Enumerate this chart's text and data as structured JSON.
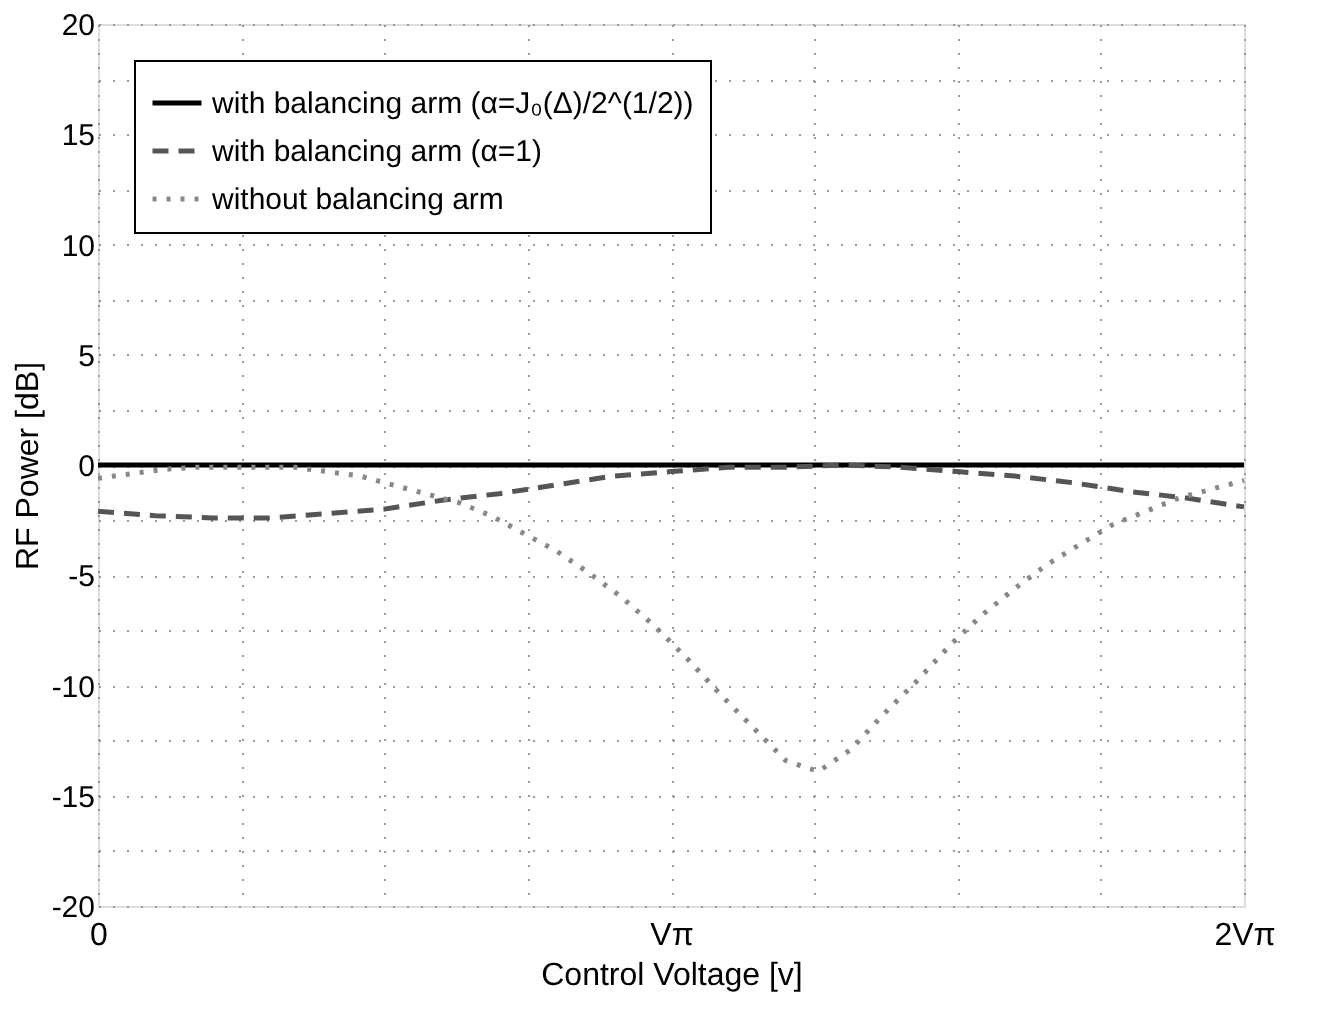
{
  "chart_data": {
    "type": "line",
    "xlabel": "Control Voltage [v]",
    "ylabel": "RF Power [dB]",
    "xlim": [
      0,
      2
    ],
    "ylim": [
      -20,
      20
    ],
    "xticks": [
      {
        "value": 0,
        "label": "0"
      },
      {
        "value": 0.25,
        "label": null
      },
      {
        "value": 0.5,
        "label": null
      },
      {
        "value": 0.75,
        "label": null
      },
      {
        "value": 1,
        "label": "Vπ"
      },
      {
        "value": 1.25,
        "label": null
      },
      {
        "value": 1.5,
        "label": null
      },
      {
        "value": 1.75,
        "label": null
      },
      {
        "value": 2,
        "label": "2Vπ"
      }
    ],
    "yticks": [
      -20,
      {
        "value": -17.5,
        "label": null
      },
      -15,
      {
        "value": -12.5,
        "label": null
      },
      -10,
      {
        "value": -7.5,
        "label": null
      },
      -5,
      {
        "value": -2.5,
        "label": null
      },
      0,
      {
        "value": 2.5,
        "label": null
      },
      5,
      {
        "value": 7.5,
        "label": null
      },
      10,
      {
        "value": 12.5,
        "label": null
      },
      15,
      {
        "value": 17.5,
        "label": null
      },
      20
    ],
    "grid": true,
    "legend": "top left",
    "series": [
      {
        "name": "with balancing arm (α=J₀(Δ)/2^(1/2))",
        "color": "#000000",
        "line_style": "solid",
        "x": [
          0,
          2
        ],
        "values": [
          0,
          0
        ]
      },
      {
        "name": "with balancing arm (α=1)",
        "color": "#555555",
        "line_style": "dashed",
        "x": [
          0,
          0.1,
          0.2,
          0.3,
          0.4,
          0.5,
          0.6,
          0.7,
          0.8,
          0.9,
          1.0,
          1.1,
          1.2,
          1.3,
          1.4,
          1.5,
          1.6,
          1.7,
          1.8,
          1.9,
          2.0
        ],
        "values": [
          -2.1,
          -2.3,
          -2.4,
          -2.4,
          -2.2,
          -2.0,
          -1.6,
          -1.3,
          -0.9,
          -0.5,
          -0.3,
          -0.1,
          -0.1,
          0.0,
          -0.1,
          -0.3,
          -0.5,
          -0.8,
          -1.2,
          -1.5,
          -1.9
        ]
      },
      {
        "name": "without balancing arm",
        "color": "#888888",
        "line_style": "dotted",
        "x": [
          0,
          0.057,
          0.114,
          0.171,
          0.229,
          0.286,
          0.343,
          0.4,
          0.457,
          0.514,
          0.571,
          0.629,
          0.686,
          0.743,
          0.8,
          0.857,
          0.914,
          0.971,
          1.029,
          1.086,
          1.143,
          1.2,
          1.257,
          1.314,
          1.371,
          1.429,
          1.486,
          1.543,
          1.6,
          1.657,
          1.714,
          1.771,
          1.829,
          1.886,
          1.943,
          2.0
        ],
        "values": [
          -0.6,
          -0.4,
          -0.2,
          -0.1,
          -0.1,
          -0.1,
          -0.1,
          -0.3,
          -0.5,
          -0.9,
          -1.3,
          -1.7,
          -2.3,
          -3.1,
          -3.9,
          -4.9,
          -6.0,
          -7.3,
          -8.8,
          -10.4,
          -11.9,
          -13.4,
          -13.9,
          -12.9,
          -11.3,
          -9.8,
          -8.2,
          -6.8,
          -5.6,
          -4.5,
          -3.6,
          -2.7,
          -2.1,
          -1.5,
          -1.1,
          -0.7
        ]
      }
    ]
  }
}
